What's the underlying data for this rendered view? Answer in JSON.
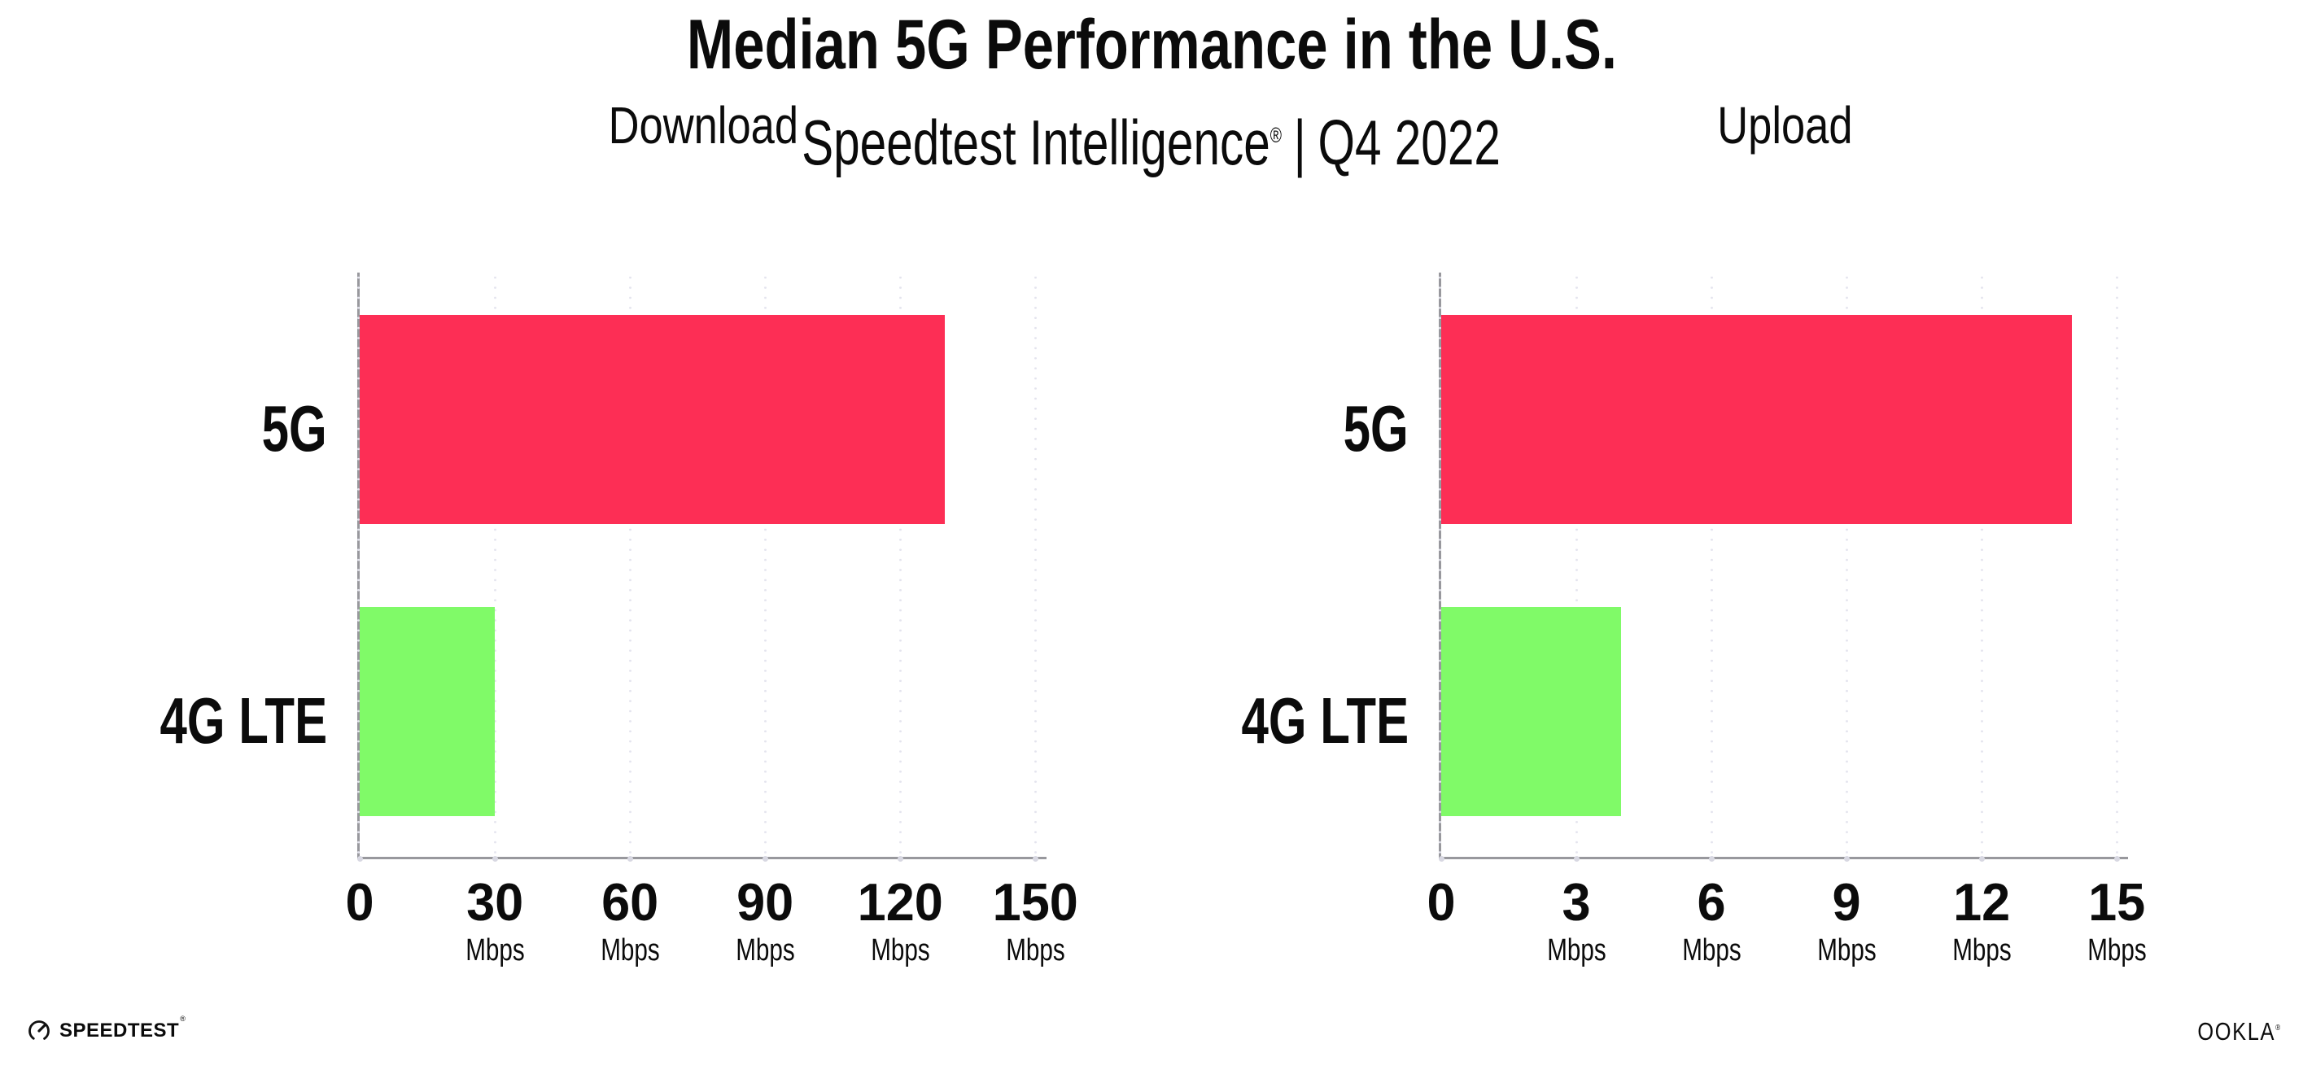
{
  "header": {
    "title": "Median 5G Performance in the U.S.",
    "subtitle_brand": "Speedtest Intelligence",
    "subtitle_reg": "®",
    "subtitle_divider": "|",
    "subtitle_period": "Q4 2022"
  },
  "chart_data": [
    {
      "type": "bar",
      "orientation": "horizontal",
      "title": "Download",
      "categories": [
        "5G",
        "4G LTE"
      ],
      "values": [
        130,
        30
      ],
      "unit": "Mbps",
      "xlabel_ticks": [
        0,
        30,
        60,
        90,
        120,
        150
      ],
      "xlim": [
        0,
        152.5
      ],
      "grid": "vertical-dotted",
      "legend": "none",
      "bar_colors": [
        "#FD2E55",
        "#80FA68"
      ]
    },
    {
      "type": "bar",
      "orientation": "horizontal",
      "title": "Upload",
      "categories": [
        "5G",
        "4G LTE"
      ],
      "values": [
        14,
        4
      ],
      "unit": "Mbps",
      "xlabel_ticks": [
        0,
        3,
        6,
        9,
        12,
        15
      ],
      "xlim": [
        0,
        15.25
      ],
      "grid": "vertical-dotted",
      "legend": "none",
      "bar_colors": [
        "#FD2E55",
        "#80FA68"
      ]
    }
  ],
  "footer": {
    "speedtest_logo_text": "SPEEDTEST",
    "speedtest_mark": "®",
    "ookla_logo_text": "OOKLA",
    "ookla_mark": "®"
  },
  "colors": {
    "bar_5g": "#FD2E55",
    "bar_4g_lte": "#80FA68",
    "axis": "#98989D",
    "gridline_dot": "#E4E4EE",
    "tick_dot": "#D8D8E2",
    "text": "#0B0B0B"
  }
}
